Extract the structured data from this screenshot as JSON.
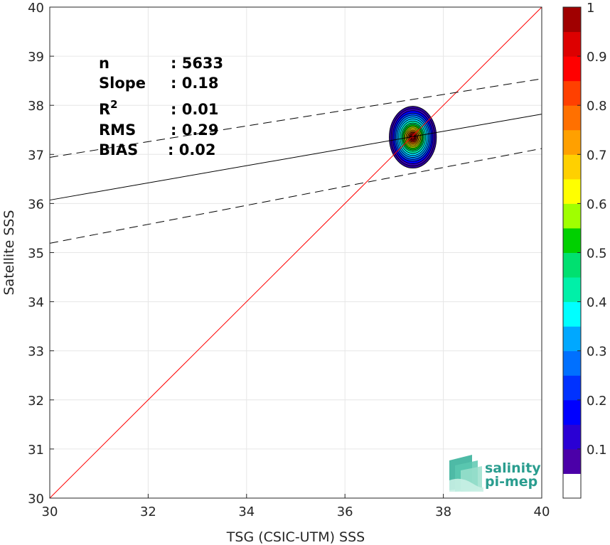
{
  "chart_data": {
    "type": "scatter-density",
    "xlabel": "TSG (CSIC-UTM) SSS",
    "ylabel": "Satellite SSS",
    "xlim": [
      30,
      40
    ],
    "ylim": [
      30,
      40
    ],
    "x_ticks": [
      30,
      32,
      34,
      36,
      38,
      40
    ],
    "y_ticks": [
      30,
      31,
      32,
      33,
      34,
      35,
      36,
      37,
      38,
      39,
      40
    ],
    "grid": true,
    "identity_line": {
      "from": [
        30,
        30
      ],
      "to": [
        40,
        40
      ],
      "color": "#ff0000"
    },
    "fit_line": {
      "from": [
        30,
        36.07
      ],
      "to": [
        40,
        37.82
      ],
      "color": "#000000",
      "style": "solid"
    },
    "upper_band": {
      "from": [
        30,
        36.94
      ],
      "to": [
        40,
        38.54
      ],
      "color": "#000000",
      "style": "dashed"
    },
    "lower_band": {
      "from": [
        30,
        35.19
      ],
      "to": [
        40,
        37.12
      ],
      "color": "#000000",
      "style": "dashed"
    },
    "density_center": {
      "x": 37.38,
      "y": 37.35
    },
    "density_levels": [
      {
        "level": 0.05,
        "rx": 0.48,
        "ry": 0.63,
        "color": "#2a0096"
      },
      {
        "level": 0.1,
        "rx": 0.44,
        "ry": 0.58,
        "color": "#3d00c9"
      },
      {
        "level": 0.15,
        "rx": 0.41,
        "ry": 0.54,
        "color": "#0000ff"
      },
      {
        "level": 0.2,
        "rx": 0.38,
        "ry": 0.49,
        "color": "#0040ff"
      },
      {
        "level": 0.25,
        "rx": 0.35,
        "ry": 0.45,
        "color": "#0080ff"
      },
      {
        "level": 0.3,
        "rx": 0.32,
        "ry": 0.41,
        "color": "#00b0ff"
      },
      {
        "level": 0.35,
        "rx": 0.29,
        "ry": 0.37,
        "color": "#00e5ff"
      },
      {
        "level": 0.4,
        "rx": 0.26,
        "ry": 0.33,
        "color": "#00f5b0"
      },
      {
        "level": 0.45,
        "rx": 0.23,
        "ry": 0.29,
        "color": "#00e070"
      },
      {
        "level": 0.5,
        "rx": 0.205,
        "ry": 0.26,
        "color": "#00d000"
      },
      {
        "level": 0.55,
        "rx": 0.18,
        "ry": 0.225,
        "color": "#a0ee00"
      },
      {
        "level": 0.6,
        "rx": 0.16,
        "ry": 0.195,
        "color": "#ffff00"
      },
      {
        "level": 0.65,
        "rx": 0.14,
        "ry": 0.17,
        "color": "#ffd000"
      },
      {
        "level": 0.7,
        "rx": 0.12,
        "ry": 0.145,
        "color": "#ffa000"
      },
      {
        "level": 0.75,
        "rx": 0.1,
        "ry": 0.12,
        "color": "#ff7000"
      },
      {
        "level": 0.8,
        "rx": 0.082,
        "ry": 0.1,
        "color": "#ff4000"
      },
      {
        "level": 0.85,
        "rx": 0.066,
        "ry": 0.08,
        "color": "#ff0000"
      },
      {
        "level": 0.9,
        "rx": 0.05,
        "ry": 0.06,
        "color": "#dd0000"
      },
      {
        "level": 0.95,
        "rx": 0.035,
        "ry": 0.04,
        "color": "#aa0000"
      }
    ],
    "colorbar": {
      "ticks": [
        "0.1",
        "0.2",
        "0.3",
        "0.4",
        "0.5",
        "0.6",
        "0.7",
        "0.8",
        "0.9",
        "1"
      ],
      "colors": [
        "#ffffff",
        "#4b00a8",
        "#2a00d4",
        "#0000ff",
        "#0032ff",
        "#0070ff",
        "#00a8ff",
        "#00ffff",
        "#00f0a8",
        "#00e070",
        "#00d000",
        "#a0ff00",
        "#ffff00",
        "#ffd000",
        "#ffa000",
        "#ff7000",
        "#ff4000",
        "#ff0000",
        "#dd0000",
        "#a00000"
      ]
    },
    "stats": [
      {
        "label": "n",
        "value": ": 5633"
      },
      {
        "label": "Slope",
        "value": ": 0.18"
      },
      {
        "label": "R",
        "sup": "2",
        "value": ": 0.01"
      },
      {
        "label": "RMS",
        "value": ": 0.29"
      },
      {
        "label": "BIAS",
        "value": ": 0.02"
      }
    ]
  },
  "logo": {
    "line1": "salinity",
    "line2": "pi-mep"
  }
}
